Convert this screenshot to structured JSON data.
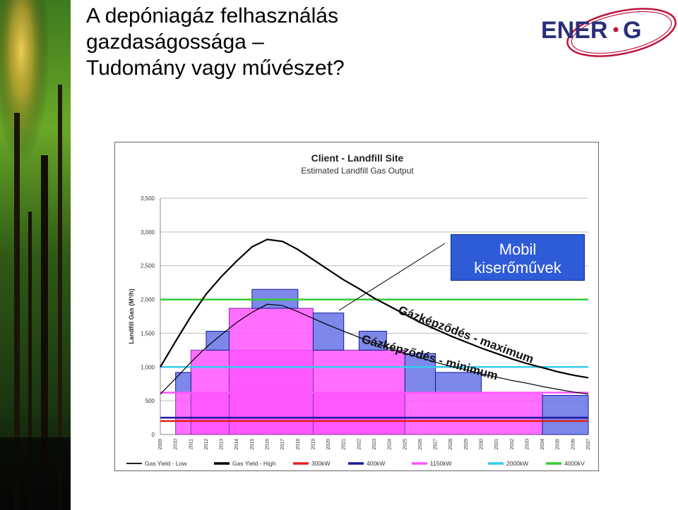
{
  "slide": {
    "title_lines": [
      "A depóniagáz felhasználás",
      "gazdaságossága –",
      "Tudomány vagy művészet?"
    ],
    "logo_text": "ENER·G"
  },
  "callout": {
    "line1": "Mobil",
    "line2": "kiserőművek"
  },
  "annotations": {
    "max_label": "Gázképződés - maximum",
    "min_label": "Gázképződés - minimum"
  },
  "colors": {
    "gas_low": "#000000",
    "gas_high": "#000000",
    "kw300": "#e02020",
    "kw400": "#1a1aa0",
    "kw1150": "#ff55ff",
    "kw2000": "#33ccee",
    "kw4000": "#33cc33",
    "step_fill": "#6f7be8",
    "callout": "#2e5bd8"
  },
  "chart_data": {
    "type": "line",
    "title": "Client - Landfill Site",
    "subtitle": "Estimated Landfill Gas Output",
    "xlabel": "",
    "ylabel": "Landfill Gas (M³/h)",
    "ylim": [
      0,
      3500
    ],
    "yticks": [
      0,
      500,
      1000,
      1500,
      2000,
      2500,
      3000,
      3500
    ],
    "ytick_labels": [
      "0",
      "500",
      "1,000",
      "1,500",
      "2,000",
      "2,500",
      "3,000",
      "3,500"
    ],
    "x": [
      2009,
      2010,
      2011,
      2012,
      2013,
      2014,
      2015,
      2016,
      2017,
      2018,
      2019,
      2020,
      2021,
      2022,
      2023,
      2024,
      2025,
      2026,
      2027,
      2028,
      2029,
      2030,
      2031,
      2032,
      2033,
      2034,
      2035,
      2036,
      2037
    ],
    "series": [
      {
        "name": "Gas Yield - Low",
        "values": [
          600,
          830,
          1070,
          1290,
          1480,
          1660,
          1810,
          1930,
          1910,
          1820,
          1720,
          1620,
          1530,
          1440,
          1360,
          1280,
          1200,
          1140,
          1070,
          1010,
          960,
          900,
          850,
          800,
          760,
          710,
          670,
          630,
          600
        ]
      },
      {
        "name": "Gas Yield - High",
        "values": [
          1000,
          1380,
          1750,
          2080,
          2340,
          2570,
          2780,
          2890,
          2860,
          2740,
          2590,
          2440,
          2290,
          2160,
          2020,
          1900,
          1780,
          1660,
          1560,
          1460,
          1370,
          1280,
          1200,
          1120,
          1050,
          990,
          930,
          880,
          840
        ]
      },
      {
        "name": "300kW",
        "constant": 200
      },
      {
        "name": "400kW",
        "constant": 250
      },
      {
        "name": "1150kW",
        "constant": 620
      },
      {
        "name": "2000kW",
        "constant": 1000
      },
      {
        "name": "4000kW",
        "constant": 2000
      }
    ],
    "pink_blocks": [
      {
        "from": 2010,
        "to": 2034,
        "value": 620
      },
      {
        "from": 2011,
        "to": 2025,
        "value": 1250
      },
      {
        "from": 2013.5,
        "to": 2019,
        "value": 1870
      }
    ],
    "blue_blocks": [
      {
        "from": 2010,
        "to": 2011,
        "low": 620,
        "high": 920
      },
      {
        "from": 2012,
        "to": 2013.5,
        "low": 1250,
        "high": 1530
      },
      {
        "from": 2015,
        "to": 2018,
        "low": 1870,
        "high": 2150
      },
      {
        "from": 2019,
        "to": 2021,
        "low": 1250,
        "high": 1800
      },
      {
        "from": 2022,
        "to": 2023.8,
        "low": 1250,
        "high": 1530
      },
      {
        "from": 2025,
        "to": 2027,
        "low": 620,
        "high": 1200
      },
      {
        "from": 2027,
        "to": 2030,
        "low": 620,
        "high": 920
      },
      {
        "from": 2034,
        "to": 2037,
        "low": 0,
        "high": 580
      }
    ],
    "legend": [
      "Gas Yield - Low",
      "Gas Yield - High",
      "300kW",
      "400kW",
      "1150kW",
      "2000kW",
      "4000kV"
    ],
    "legend_placement": "bottom",
    "grid": true
  }
}
